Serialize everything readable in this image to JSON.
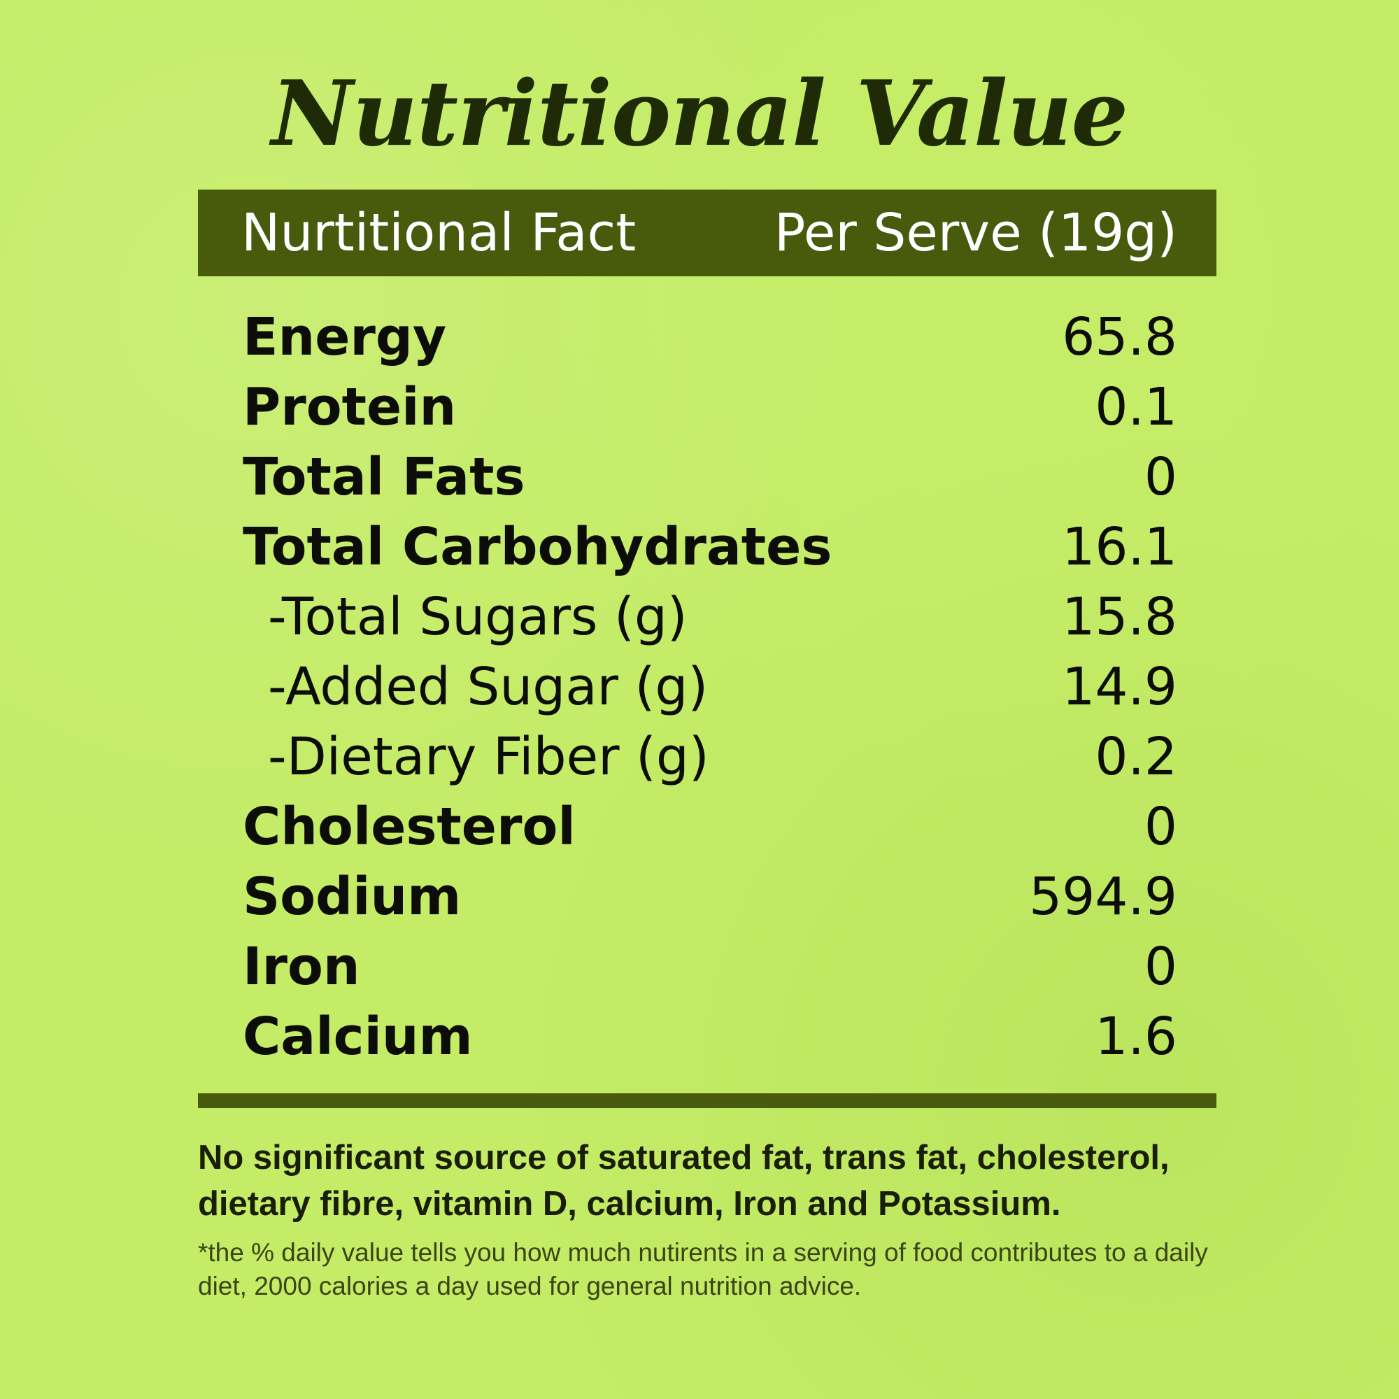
{
  "title": "Nutritional Value",
  "header": {
    "left": "Nurtitional Fact",
    "right": "Per Serve (19g)"
  },
  "rows": [
    {
      "label": "Energy",
      "value": "65.8",
      "sub": false
    },
    {
      "label": "Protein",
      "value": "0.1",
      "sub": false
    },
    {
      "label": "Total Fats",
      "value": "0",
      "sub": false
    },
    {
      "label": "Total Carbohydrates",
      "value": "16.1",
      "sub": false
    },
    {
      "label": "-Total Sugars (g)",
      "value": "15.8",
      "sub": true
    },
    {
      "label": "-Added Sugar (g)",
      "value": "14.9",
      "sub": true
    },
    {
      "label": "-Dietary Fiber (g)",
      "value": "0.2",
      "sub": true
    },
    {
      "label": "Cholesterol",
      "value": "0",
      "sub": false
    },
    {
      "label": "Sodium",
      "value": "594.9",
      "sub": false
    },
    {
      "label": "Iron",
      "value": "0",
      "sub": false
    },
    {
      "label": "Calcium",
      "value": "1.6",
      "sub": false
    }
  ],
  "note_main": "No significant source of saturated fat, trans fat, cholesterol, dietary fibre, vitamin D, calcium, Iron and Potassium.",
  "note_small": "*the % daily value tells you how much nutirents in a serving of food contributes to a daily diet, 2000 calories a day used for general nutrition advice.",
  "colors": {
    "background": "#c4ec66",
    "header_bar": "#485a0c",
    "title_text": "#1f2a06"
  }
}
